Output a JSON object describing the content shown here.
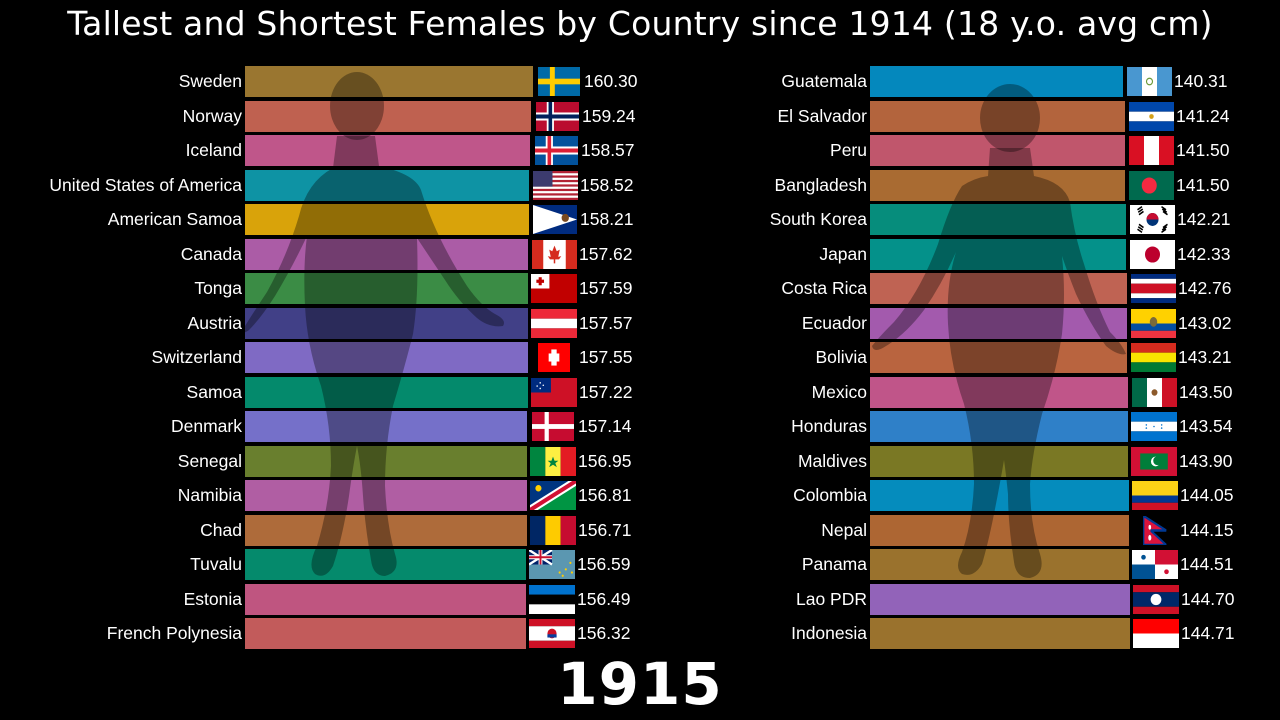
{
  "title": "Tallest and Shortest Females by Country since 1914 (18 y.o. avg cm)",
  "year": "1915",
  "chart_data": [
    {
      "type": "bar",
      "title": "Tallest Females by Country",
      "orientation": "horizontal",
      "categories": [
        "Sweden",
        "Norway",
        "Iceland",
        "United States of America",
        "American Samoa",
        "Canada",
        "Tonga",
        "Austria",
        "Switzerland",
        "Samoa",
        "Denmark",
        "Senegal",
        "Namibia",
        "Chad",
        "Tuvalu",
        "Estonia",
        "French Polynesia"
      ],
      "values": [
        160.3,
        159.24,
        158.57,
        158.52,
        158.21,
        157.62,
        157.59,
        157.57,
        157.55,
        157.22,
        157.14,
        156.95,
        156.81,
        156.71,
        156.59,
        156.49,
        156.32
      ],
      "unit": "cm",
      "year": 1915
    },
    {
      "type": "bar",
      "title": "Shortest Females by Country",
      "orientation": "horizontal",
      "categories": [
        "Guatemala",
        "El Salvador",
        "Peru",
        "Bangladesh",
        "South Korea",
        "Japan",
        "Costa Rica",
        "Ecuador",
        "Bolivia",
        "Mexico",
        "Honduras",
        "Maldives",
        "Colombia",
        "Nepal",
        "Panama",
        "Lao PDR",
        "Indonesia"
      ],
      "values": [
        140.31,
        141.24,
        141.5,
        141.5,
        142.21,
        142.33,
        142.76,
        143.02,
        143.21,
        143.5,
        143.54,
        143.9,
        144.05,
        144.15,
        144.51,
        144.7,
        144.71
      ],
      "unit": "cm",
      "year": 1915
    }
  ],
  "tallest": [
    {
      "name": "Sweden",
      "value": "160.30",
      "color": "#9a7630",
      "flag": "flag-sweden-icon",
      "end": 533,
      "fw": 42
    },
    {
      "name": "Norway",
      "value": "159.24",
      "color": "#bf6150",
      "flag": "flag-norway-icon",
      "end": 531,
      "fw": 43
    },
    {
      "name": "Iceland",
      "value": "158.57",
      "color": "#bf568a",
      "flag": "flag-iceland-icon",
      "end": 530,
      "fw": 43
    },
    {
      "name": "United States of America",
      "value": "158.52",
      "color": "#0e93a4",
      "flag": "flag-usa-icon",
      "end": 529,
      "fw": 45
    },
    {
      "name": "American Samoa",
      "value": "158.21",
      "color": "#d9a30a",
      "flag": "flag-american-samoa-icon",
      "end": 529,
      "fw": 44
    },
    {
      "name": "Canada",
      "value": "157.62",
      "color": "#ab5ca6",
      "flag": "flag-canada-icon",
      "end": 528,
      "fw": 45
    },
    {
      "name": "Tonga",
      "value": "157.59",
      "color": "#3b8c45",
      "flag": "flag-tonga-icon",
      "end": 528,
      "fw": 46
    },
    {
      "name": "Austria",
      "value": "157.57",
      "color": "#414087",
      "flag": "flag-austria-icon",
      "end": 528,
      "fw": 46
    },
    {
      "name": "Switzerland",
      "value": "157.55",
      "color": "#7f6ac4",
      "flag": "flag-switzerland-icon",
      "end": 528,
      "fw": 32
    },
    {
      "name": "Samoa",
      "value": "157.22",
      "color": "#048a6c",
      "flag": "flag-samoa-icon",
      "end": 528,
      "fw": 46
    },
    {
      "name": "Denmark",
      "value": "157.14",
      "color": "#7570c9",
      "flag": "flag-denmark-icon",
      "end": 527,
      "fw": 42
    },
    {
      "name": "Senegal",
      "value": "156.95",
      "color": "#697f2e",
      "flag": "flag-senegal-icon",
      "end": 527,
      "fw": 46
    },
    {
      "name": "Namibia",
      "value": "156.81",
      "color": "#b05ea3",
      "flag": "flag-namibia-icon",
      "end": 527,
      "fw": 46
    },
    {
      "name": "Chad",
      "value": "156.71",
      "color": "#ae6b3a",
      "flag": "flag-chad-icon",
      "end": 527,
      "fw": 46
    },
    {
      "name": "Tuvalu",
      "value": "156.59",
      "color": "#058a6c",
      "flag": "flag-tuvalu-icon",
      "end": 526,
      "fw": 46
    },
    {
      "name": "Estonia",
      "value": "156.49",
      "color": "#bf5580",
      "flag": "flag-estonia-icon",
      "end": 526,
      "fw": 46
    },
    {
      "name": "French Polynesia",
      "value": "156.32",
      "color": "#c25b5b",
      "flag": "flag-french-polynesia-icon",
      "end": 526,
      "fw": 46
    }
  ],
  "shortest": [
    {
      "name": "Guatemala",
      "value": "140.31",
      "color": "#0488bd",
      "flag": "flag-guatemala-icon",
      "end": 1123,
      "fw": 45
    },
    {
      "name": "El Salvador",
      "value": "141.24",
      "color": "#b3643d",
      "flag": "flag-el-salvador-icon",
      "end": 1125,
      "fw": 45
    },
    {
      "name": "Peru",
      "value": "141.50",
      "color": "#c0566c",
      "flag": "flag-peru-icon",
      "end": 1125,
      "fw": 45
    },
    {
      "name": "Bangladesh",
      "value": "141.50",
      "color": "#a96b32",
      "flag": "flag-bangladesh-icon",
      "end": 1125,
      "fw": 45
    },
    {
      "name": "South Korea",
      "value": "142.21",
      "color": "#068d7c",
      "flag": "flag-south-korea-icon",
      "end": 1126,
      "fw": 45
    },
    {
      "name": "Japan",
      "value": "142.33",
      "color": "#04918a",
      "flag": "flag-japan-icon",
      "end": 1126,
      "fw": 45
    },
    {
      "name": "Costa Rica",
      "value": "142.76",
      "color": "#bf6353",
      "flag": "flag-costa-rica-icon",
      "end": 1127,
      "fw": 45
    },
    {
      "name": "Ecuador",
      "value": "143.02",
      "color": "#a35aad",
      "flag": "flag-ecuador-icon",
      "end": 1127,
      "fw": 45
    },
    {
      "name": "Bolivia",
      "value": "143.21",
      "color": "#b9643f",
      "flag": "flag-bolivia-icon",
      "end": 1127,
      "fw": 45
    },
    {
      "name": "Mexico",
      "value": "143.50",
      "color": "#c05589",
      "flag": "flag-mexico-icon",
      "end": 1128,
      "fw": 45
    },
    {
      "name": "Honduras",
      "value": "143.54",
      "color": "#2f80c8",
      "flag": "flag-honduras-icon",
      "end": 1128,
      "fw": 46
    },
    {
      "name": "Maldives",
      "value": "143.90",
      "color": "#7a7824",
      "flag": "flag-maldives-icon",
      "end": 1128,
      "fw": 46
    },
    {
      "name": "Colombia",
      "value": "144.05",
      "color": "#058cbd",
      "flag": "flag-colombia-icon",
      "end": 1129,
      "fw": 46
    },
    {
      "name": "Nepal",
      "value": "144.15",
      "color": "#ad6633",
      "flag": "flag-nepal-icon",
      "end": 1129,
      "fw": 26
    },
    {
      "name": "Panama",
      "value": "144.51",
      "color": "#9a722d",
      "flag": "flag-panama-icon",
      "end": 1129,
      "fw": 46
    },
    {
      "name": "Lao PDR",
      "value": "144.70",
      "color": "#9263b9",
      "flag": "flag-lao-icon",
      "end": 1130,
      "fw": 46
    },
    {
      "name": "Indonesia",
      "value": "144.71",
      "color": "#9a722d",
      "flag": "flag-indonesia-icon",
      "end": 1130,
      "fw": 46
    }
  ]
}
